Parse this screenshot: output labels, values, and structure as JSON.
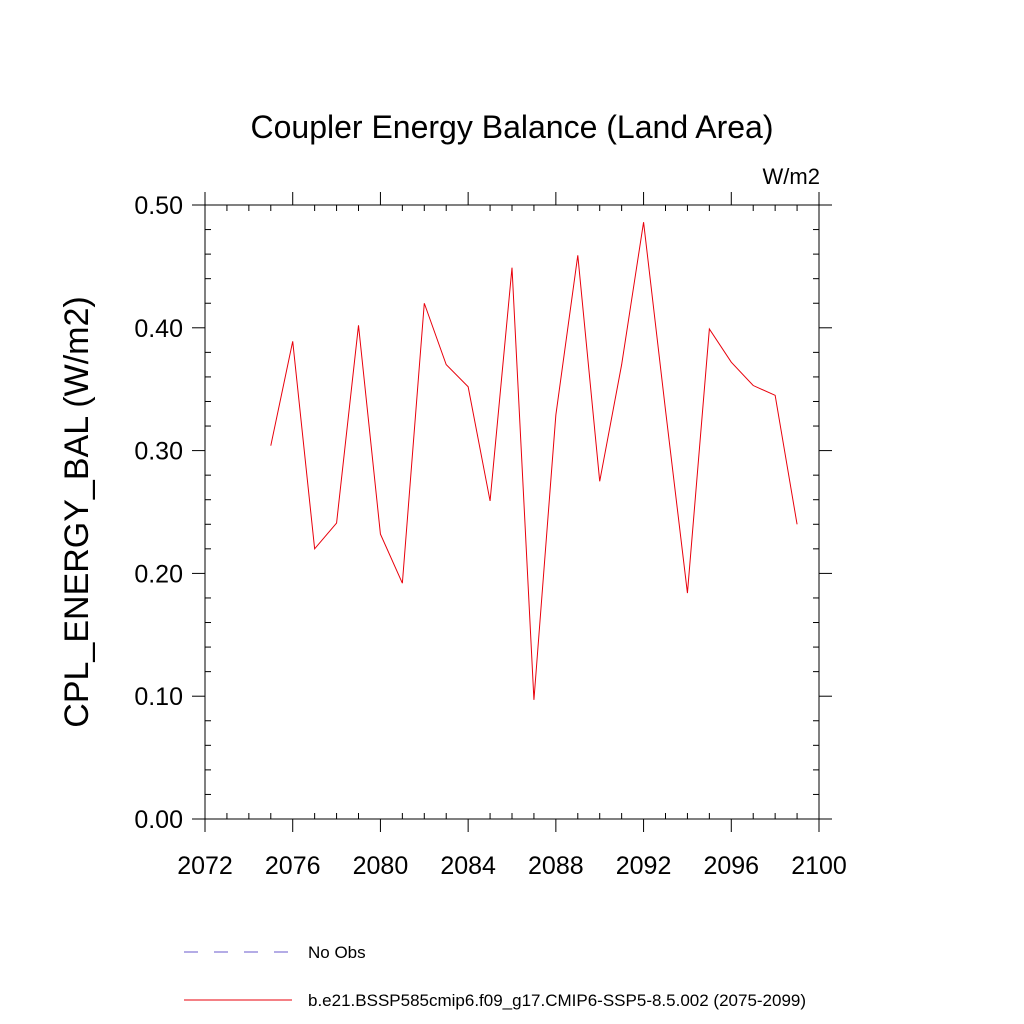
{
  "chart_data": {
    "type": "line",
    "title": "Coupler Energy Balance (Land Area)",
    "units_label": "W/m2",
    "xlabel": "",
    "ylabel": "CPL_ENERGY_BAL  (W/m2)",
    "xlim": [
      2072,
      2100
    ],
    "ylim": [
      0.0,
      0.5
    ],
    "x_ticks": [
      2072,
      2076,
      2080,
      2084,
      2088,
      2092,
      2096,
      2100
    ],
    "x_tick_labels": [
      "2072",
      "2076",
      "2080",
      "2084",
      "2088",
      "2092",
      "2096",
      "2100"
    ],
    "y_ticks": [
      0.0,
      0.1,
      0.2,
      0.3,
      0.4,
      0.5
    ],
    "y_tick_labels": [
      "0.00",
      "0.10",
      "0.20",
      "0.30",
      "0.40",
      "0.50"
    ],
    "grid": false,
    "legend_position": "bottom",
    "series": [
      {
        "name": "No Obs",
        "color": "#6a5acd",
        "dash": "dashed",
        "x": [],
        "y": []
      },
      {
        "name": "b.e21.BSSP585cmip6.f09_g17.CMIP6-SSP5-8.5.002 (2075-2099)",
        "color": "#e8000b",
        "dash": "solid",
        "x": [
          2075,
          2076,
          2077,
          2078,
          2079,
          2080,
          2081,
          2082,
          2083,
          2084,
          2085,
          2086,
          2087,
          2088,
          2089,
          2090,
          2091,
          2092,
          2093,
          2094,
          2095,
          2096,
          2097,
          2098,
          2099
        ],
        "y": [
          0.304,
          0.389,
          0.22,
          0.241,
          0.402,
          0.232,
          0.192,
          0.42,
          0.37,
          0.352,
          0.259,
          0.449,
          0.097,
          0.329,
          0.459,
          0.275,
          0.37,
          0.486,
          0.333,
          0.184,
          0.399,
          0.372,
          0.353,
          0.345,
          0.24
        ]
      }
    ]
  }
}
